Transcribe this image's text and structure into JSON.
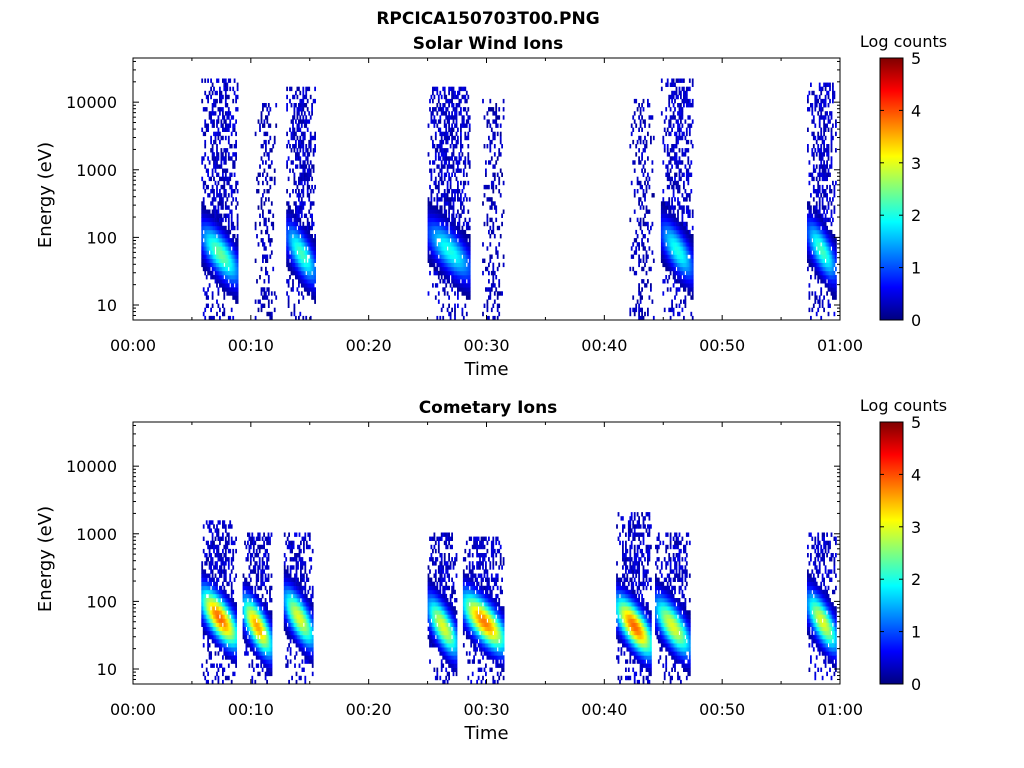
{
  "figure": {
    "title": "RPCICA150703T00.PNG"
  },
  "colormap": {
    "name": "jet",
    "stops": [
      "#00007f",
      "#0000ff",
      "#007fff",
      "#00ffff",
      "#7fff7f",
      "#ffff00",
      "#ff7f00",
      "#ff0000",
      "#7f0000"
    ]
  },
  "chart_data": [
    {
      "type": "heatmap",
      "title": "Solar Wind Ions",
      "xlabel": "Time",
      "ylabel": "Energy (eV)",
      "x_tick_labels": [
        "00:00",
        "00:10",
        "00:20",
        "00:30",
        "00:40",
        "00:50",
        "01:00"
      ],
      "x_range_minutes": [
        0,
        60
      ],
      "y_scale": "log",
      "y_range_eV": [
        6,
        45000
      ],
      "y_tick_values": [
        10,
        100,
        1000,
        10000
      ],
      "y_tick_labels": [
        "10",
        "100",
        "1000",
        "10000"
      ],
      "colorbar": {
        "label": "Log counts",
        "range": [
          0,
          5
        ],
        "tick_labels": [
          "0",
          "1",
          "2",
          "3",
          "4",
          "5"
        ]
      },
      "bursts": [
        {
          "start_min": 5.8,
          "end_min": 8.9,
          "low_energy_eV": 40,
          "peak_log_counts": 2.4,
          "max_energy_eV": 20000
        },
        {
          "start_min": 10.2,
          "end_min": 12.2,
          "low_energy_eV": 300,
          "peak_log_counts": 0.3,
          "max_energy_eV": 10000
        },
        {
          "start_min": 13.0,
          "end_min": 15.5,
          "low_energy_eV": 40,
          "peak_log_counts": 2.2,
          "max_energy_eV": 15000
        },
        {
          "start_min": 25.0,
          "end_min": 28.6,
          "low_energy_eV": 45,
          "peak_log_counts": 2.0,
          "max_energy_eV": 15000
        },
        {
          "start_min": 29.5,
          "end_min": 31.5,
          "low_energy_eV": 400,
          "peak_log_counts": 0.3,
          "max_energy_eV": 10000
        },
        {
          "start_min": 42.0,
          "end_min": 44.2,
          "low_energy_eV": 400,
          "peak_log_counts": 0.3,
          "max_energy_eV": 10000
        },
        {
          "start_min": 44.8,
          "end_min": 47.5,
          "low_energy_eV": 45,
          "peak_log_counts": 2.0,
          "max_energy_eV": 20000
        },
        {
          "start_min": 57.2,
          "end_min": 59.6,
          "low_energy_eV": 45,
          "peak_log_counts": 2.2,
          "max_energy_eV": 18000
        }
      ]
    },
    {
      "type": "heatmap",
      "title": "Cometary Ions",
      "xlabel": "Time",
      "ylabel": "Energy (eV)",
      "x_tick_labels": [
        "00:00",
        "00:10",
        "00:20",
        "00:30",
        "00:40",
        "00:50",
        "01:00"
      ],
      "x_range_minutes": [
        0,
        60
      ],
      "y_scale": "log",
      "y_range_eV": [
        6,
        45000
      ],
      "y_tick_values": [
        10,
        100,
        1000,
        10000
      ],
      "y_tick_labels": [
        "10",
        "100",
        "1000",
        "10000"
      ],
      "colorbar": {
        "label": "Log counts",
        "range": [
          0,
          5
        ],
        "tick_labels": [
          "0",
          "1",
          "2",
          "3",
          "4",
          "5"
        ]
      },
      "bursts": [
        {
          "start_min": 5.8,
          "end_min": 8.8,
          "low_energy_eV": 40,
          "peak_log_counts": 3.9,
          "max_energy_eV": 1500
        },
        {
          "start_min": 9.3,
          "end_min": 11.7,
          "low_energy_eV": 30,
          "peak_log_counts": 3.6,
          "max_energy_eV": 1000
        },
        {
          "start_min": 12.8,
          "end_min": 15.3,
          "low_energy_eV": 40,
          "peak_log_counts": 3.0,
          "max_energy_eV": 1000
        },
        {
          "start_min": 25.0,
          "end_min": 27.5,
          "low_energy_eV": 30,
          "peak_log_counts": 3.0,
          "max_energy_eV": 1000
        },
        {
          "start_min": 28.0,
          "end_min": 31.5,
          "low_energy_eV": 35,
          "peak_log_counts": 3.8,
          "max_energy_eV": 900
        },
        {
          "start_min": 41.0,
          "end_min": 44.0,
          "low_energy_eV": 30,
          "peak_log_counts": 3.9,
          "max_energy_eV": 2000
        },
        {
          "start_min": 44.3,
          "end_min": 47.2,
          "low_energy_eV": 30,
          "peak_log_counts": 3.0,
          "max_energy_eV": 1000
        },
        {
          "start_min": 57.2,
          "end_min": 59.7,
          "low_energy_eV": 35,
          "peak_log_counts": 3.0,
          "max_energy_eV": 1000
        }
      ]
    }
  ]
}
